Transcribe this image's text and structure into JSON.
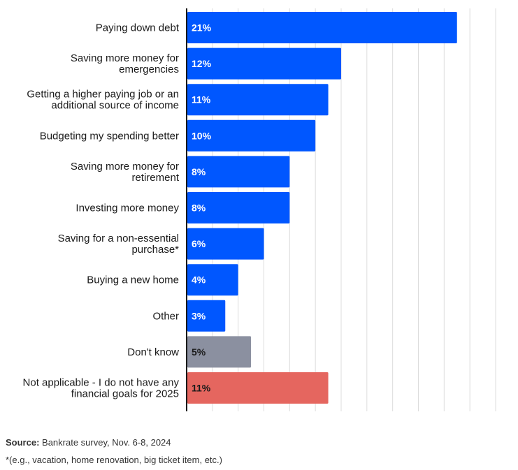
{
  "chart_data": {
    "type": "bar",
    "orientation": "horizontal",
    "title": "",
    "xlabel": "",
    "ylabel": "",
    "xlim": [
      0,
      24
    ],
    "grid": true,
    "grid_step": 2,
    "categories": [
      [
        "Paying down debt"
      ],
      [
        "Saving more money for",
        "emergencies"
      ],
      [
        "Getting a higher paying job or an",
        "additional source of income"
      ],
      [
        "Budgeting my spending better"
      ],
      [
        "Saving more money for",
        "retirement"
      ],
      [
        "Investing more money"
      ],
      [
        "Saving for a non-essential",
        "purchase*"
      ],
      [
        "Buying a new home"
      ],
      [
        "Other"
      ],
      [
        "Don't know"
      ],
      [
        "Not applicable - I do not have any",
        "financial goals for 2025"
      ]
    ],
    "values": [
      21,
      12,
      11,
      10,
      8,
      8,
      6,
      4,
      3,
      5,
      11
    ],
    "value_labels": [
      "21%",
      "12%",
      "11%",
      "10%",
      "8%",
      "8%",
      "6%",
      "4%",
      "3%",
      "5%",
      "11%"
    ],
    "colors": [
      "#0057ff",
      "#0057ff",
      "#0057ff",
      "#0057ff",
      "#0057ff",
      "#0057ff",
      "#0057ff",
      "#0057ff",
      "#0057ff",
      "#8b90a0",
      "#e5665f"
    ],
    "label_colors": [
      "#ffffff",
      "#ffffff",
      "#ffffff",
      "#ffffff",
      "#ffffff",
      "#ffffff",
      "#ffffff",
      "#ffffff",
      "#ffffff",
      "#1a1a1a",
      "#1a1a1a"
    ],
    "legend": "none"
  },
  "footer": {
    "source_label": "Source:",
    "source_text": " Bankrate survey, Nov. 6-8, 2024",
    "footnote": "*(e.g., vacation, home renovation, big ticket item, etc.)"
  }
}
